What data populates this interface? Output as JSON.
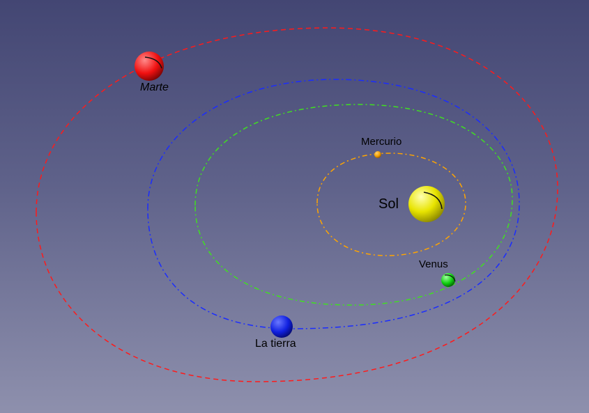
{
  "bodies": {
    "sun": {
      "label": "Sol",
      "color": "#e8e400"
    },
    "mercury": {
      "label": "Mercurio",
      "color": "#f0a000",
      "orbit_color": "#ffa500"
    },
    "venus": {
      "label": "Venus",
      "color": "#10d010",
      "orbit_color": "#40e020"
    },
    "earth": {
      "label": "La tierra",
      "color": "#1020e0",
      "orbit_color": "#1a2cff"
    },
    "mars": {
      "label": "Marte",
      "color": "#f01010",
      "orbit_color": "#ff1a1a"
    }
  }
}
